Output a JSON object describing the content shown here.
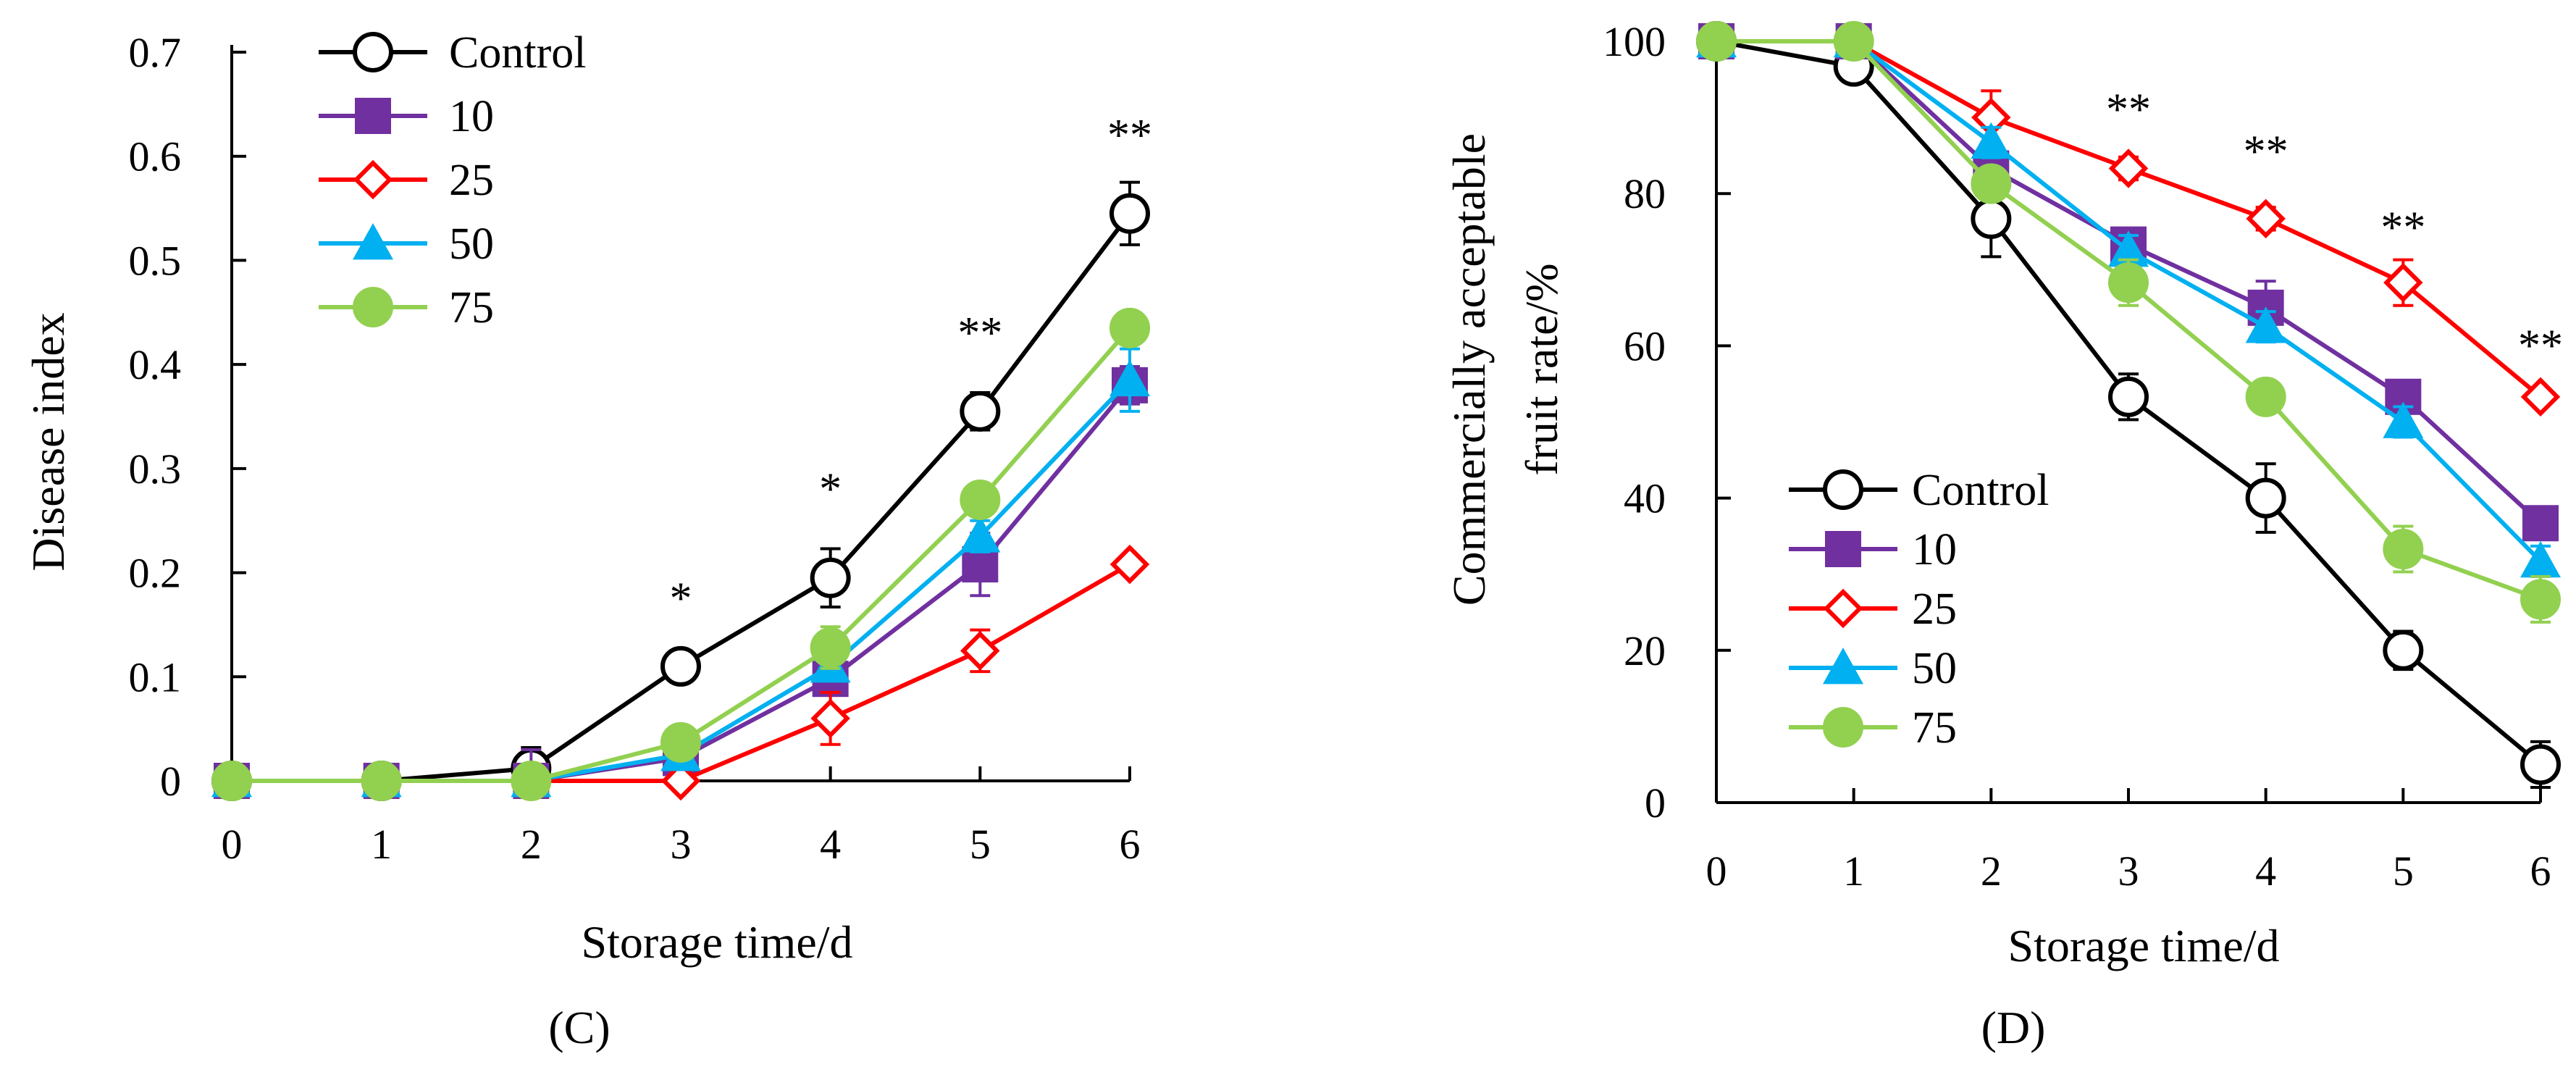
{
  "chart_data": [
    {
      "panel_label": "(C)",
      "panel_letter": "C",
      "type": "line",
      "xlabel": "Storage time/d",
      "ylabel": "Disease index",
      "x": [
        0,
        1,
        2,
        3,
        4,
        5,
        6
      ],
      "xlim": [
        0,
        6
      ],
      "ylim": [
        0,
        0.7
      ],
      "yticks": [
        0,
        0.1,
        0.2,
        0.3,
        0.4,
        0.5,
        0.6,
        0.7
      ],
      "ytick_labels": [
        "0",
        "0.1",
        "0.2",
        "0.3",
        "0.4",
        "0.5",
        "0.6",
        "0.7"
      ],
      "xtick_labels": [
        "0",
        "1",
        "2",
        "3",
        "4",
        "5",
        "6"
      ],
      "grid": false,
      "legend_position": "top-left",
      "series": [
        {
          "name": "Control",
          "color": "#000000",
          "marker": "circle-open",
          "values": [
            0,
            0,
            0.012,
            0.11,
            0.195,
            0.355,
            0.545
          ],
          "errors": [
            0,
            0,
            0.02,
            0.012,
            0.028,
            0.018,
            0.03
          ]
        },
        {
          "name": "10",
          "color": "#7030A0",
          "marker": "square-filled",
          "values": [
            0,
            0,
            0,
            0.022,
            0.098,
            0.208,
            0.38
          ],
          "errors": [
            0,
            0,
            0.03,
            0.005,
            0.012,
            0.03,
            0.018
          ]
        },
        {
          "name": "25",
          "color": "#FF0000",
          "marker": "diamond-open",
          "values": [
            0,
            0,
            0,
            0,
            0.06,
            0.125,
            0.208
          ],
          "errors": [
            0,
            0,
            0,
            0,
            0.025,
            0.02,
            0.006
          ]
        },
        {
          "name": "50",
          "color": "#00B0F0",
          "marker": "triangle-filled",
          "values": [
            0,
            0,
            0,
            0.025,
            0.11,
            0.235,
            0.385
          ],
          "errors": [
            0,
            0,
            0.01,
            0.005,
            0.012,
            0.015,
            0.03
          ]
        },
        {
          "name": "75",
          "color": "#92D050",
          "marker": "circle-filled",
          "values": [
            0,
            0,
            0,
            0.037,
            0.128,
            0.27,
            0.435
          ],
          "errors": [
            0,
            0,
            0.005,
            0.012,
            0.02,
            0.012,
            0.008
          ]
        }
      ],
      "annotations": [
        {
          "x": 3,
          "y": 0.175,
          "text": "*"
        },
        {
          "x": 4,
          "y": 0.28,
          "text": "*"
        },
        {
          "x": 5,
          "y": 0.43,
          "text": "**"
        },
        {
          "x": 6,
          "y": 0.62,
          "text": "**"
        }
      ]
    },
    {
      "panel_label": "(D)",
      "panel_letter": "D",
      "type": "line",
      "xlabel": "Storage time/d",
      "ylabel_lines": [
        "Commercially acceptable",
        "fruit rate/%"
      ],
      "x": [
        0,
        1,
        2,
        3,
        4,
        5,
        6
      ],
      "xlim": [
        0,
        6
      ],
      "ylim": [
        0,
        100
      ],
      "yticks": [
        0,
        20,
        40,
        60,
        80,
        100
      ],
      "ytick_labels": [
        "0",
        "20",
        "40",
        "60",
        "80",
        "100"
      ],
      "xtick_labels": [
        "0",
        "1",
        "2",
        "3",
        "4",
        "5",
        "6"
      ],
      "grid": false,
      "legend_position": "bottom-left",
      "series": [
        {
          "name": "Control",
          "color": "#000000",
          "marker": "circle-open",
          "values": [
            100,
            96.7,
            76.7,
            53.3,
            40,
            20,
            5
          ],
          "errors": [
            0,
            0,
            5,
            3,
            4.5,
            2.5,
            3
          ]
        },
        {
          "name": "10",
          "color": "#7030A0",
          "marker": "square-filled",
          "values": [
            100,
            100,
            83.3,
            73.3,
            65,
            53.3,
            36.7
          ],
          "errors": [
            0,
            0,
            3,
            2,
            3.5,
            1.5,
            2
          ]
        },
        {
          "name": "25",
          "color": "#FF0000",
          "marker": "diamond-open",
          "values": [
            100,
            100,
            90,
            83.3,
            76.7,
            68.3,
            53.3
          ],
          "errors": [
            0,
            0,
            3.5,
            1.5,
            1.5,
            3,
            1
          ]
        },
        {
          "name": "50",
          "color": "#00B0F0",
          "marker": "triangle-filled",
          "values": [
            100,
            100,
            86.7,
            72.5,
            62.5,
            50,
            31.7
          ],
          "errors": [
            0,
            0,
            2,
            2,
            2,
            2,
            2
          ]
        },
        {
          "name": "75",
          "color": "#92D050",
          "marker": "circle-filled",
          "values": [
            100,
            100,
            81.3,
            68.3,
            53.3,
            33.3,
            26.7
          ],
          "errors": [
            0,
            0,
            2,
            3,
            2,
            3,
            3
          ]
        }
      ],
      "annotations": [
        {
          "x": 3,
          "y": 91,
          "text": "**"
        },
        {
          "x": 4,
          "y": 85.5,
          "text": "**"
        },
        {
          "x": 5,
          "y": 75.5,
          "text": "**"
        },
        {
          "x": 6,
          "y": 60,
          "text": "**"
        }
      ]
    }
  ]
}
